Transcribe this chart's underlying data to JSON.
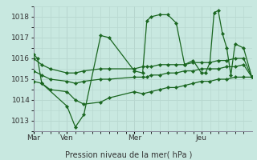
{
  "bg_color": "#c8e8e0",
  "grid_color": "#b8d8d0",
  "line_color": "#1a6620",
  "marker_color": "#1a6620",
  "xlabel": "Pression niveau de la mer( hPa )",
  "ylim": [
    1012.5,
    1018.5
  ],
  "yticks": [
    1013,
    1014,
    1015,
    1016,
    1017,
    1018
  ],
  "day_positions": [
    0.0,
    0.154,
    0.462,
    0.769
  ],
  "day_labels": [
    "Mar",
    "Ven",
    "Mer",
    "Jeu"
  ],
  "xlim": [
    0.0,
    1.0
  ],
  "series": [
    {
      "x": [
        0.0,
        0.019,
        0.038,
        0.154,
        0.192,
        0.231,
        0.308,
        0.346,
        0.462,
        0.5,
        0.519,
        0.538,
        0.577,
        0.615,
        0.654,
        0.692,
        0.731,
        0.769,
        0.788,
        0.808,
        0.827,
        0.846,
        0.865,
        0.885,
        0.904,
        0.923,
        0.962,
        1.0
      ],
      "y": [
        1016.2,
        1016.0,
        1014.8,
        1013.7,
        1012.7,
        1013.3,
        1017.1,
        1017.0,
        1015.4,
        1015.3,
        1017.8,
        1018.0,
        1018.1,
        1018.1,
        1017.7,
        1015.7,
        1015.9,
        1015.3,
        1015.3,
        1015.8,
        1018.2,
        1018.3,
        1017.2,
        1016.5,
        1015.2,
        1016.7,
        1016.5,
        1015.1
      ]
    },
    {
      "x": [
        0.0,
        0.038,
        0.077,
        0.154,
        0.192,
        0.231,
        0.308,
        0.346,
        0.462,
        0.5,
        0.519,
        0.538,
        0.577,
        0.615,
        0.654,
        0.692,
        0.731,
        0.769,
        0.808,
        0.846,
        0.885,
        0.923,
        0.962,
        1.0
      ],
      "y": [
        1016.0,
        1015.7,
        1015.5,
        1015.3,
        1015.3,
        1015.4,
        1015.5,
        1015.5,
        1015.5,
        1015.6,
        1015.6,
        1015.6,
        1015.7,
        1015.7,
        1015.7,
        1015.7,
        1015.8,
        1015.8,
        1015.8,
        1015.9,
        1015.9,
        1016.0,
        1016.0,
        1015.1
      ]
    },
    {
      "x": [
        0.0,
        0.038,
        0.077,
        0.154,
        0.192,
        0.231,
        0.308,
        0.346,
        0.462,
        0.5,
        0.519,
        0.538,
        0.577,
        0.615,
        0.654,
        0.692,
        0.731,
        0.769,
        0.808,
        0.846,
        0.885,
        0.923,
        0.962,
        1.0
      ],
      "y": [
        1015.4,
        1015.2,
        1015.0,
        1014.9,
        1014.8,
        1014.9,
        1015.0,
        1015.0,
        1015.1,
        1015.1,
        1015.1,
        1015.2,
        1015.2,
        1015.3,
        1015.3,
        1015.4,
        1015.4,
        1015.5,
        1015.5,
        1015.5,
        1015.6,
        1015.6,
        1015.7,
        1015.1
      ]
    },
    {
      "x": [
        0.0,
        0.038,
        0.077,
        0.154,
        0.192,
        0.231,
        0.308,
        0.346,
        0.462,
        0.5,
        0.538,
        0.577,
        0.615,
        0.654,
        0.692,
        0.731,
        0.769,
        0.808,
        0.846,
        0.885,
        0.923,
        0.962,
        1.0
      ],
      "y": [
        1014.9,
        1014.8,
        1014.5,
        1014.4,
        1014.0,
        1013.8,
        1013.9,
        1014.1,
        1014.4,
        1014.3,
        1014.4,
        1014.5,
        1014.6,
        1014.6,
        1014.7,
        1014.8,
        1014.9,
        1014.9,
        1015.0,
        1015.0,
        1015.1,
        1015.1,
        1015.1
      ]
    }
  ]
}
